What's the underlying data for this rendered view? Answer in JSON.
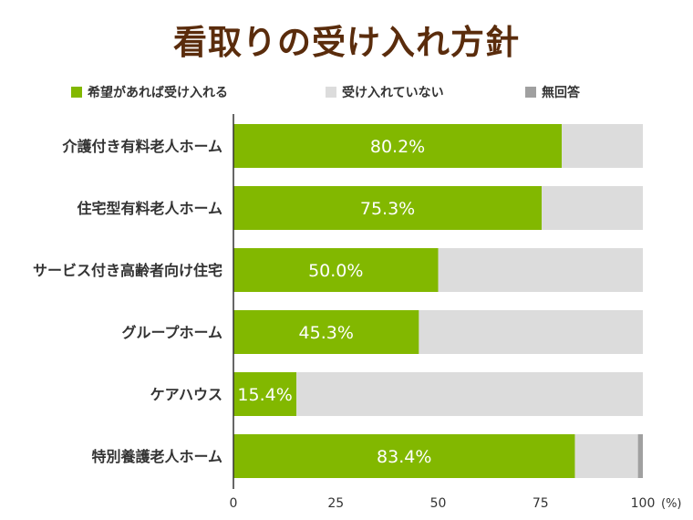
{
  "title": "看取りの受け入れ方針",
  "colors": {
    "accept": "#82b800",
    "not_accept": "#dcdcdc",
    "no_answer": "#a0a0a0",
    "title": "#5a2c0c"
  },
  "legend": [
    {
      "label": "希望があれば受け入れる",
      "color": "#82b800"
    },
    {
      "label": "受け入れていない",
      "color": "#dcdcdc"
    },
    {
      "label": "無回答",
      "color": "#a0a0a0"
    }
  ],
  "chart_data": {
    "type": "bar",
    "orientation": "horizontal",
    "stacked": true,
    "title": "看取りの受け入れ方針",
    "categories": [
      "介護付き有料老人ホーム",
      "住宅型有料老人ホーム",
      "サービス付き高齢者向け住宅",
      "グループホーム",
      "ケアハウス",
      "特別養護老人ホーム"
    ],
    "series": [
      {
        "name": "希望があれば受け入れる",
        "values": [
          80.2,
          75.3,
          50.0,
          45.3,
          15.4,
          83.4
        ]
      },
      {
        "name": "受け入れていない",
        "values": [
          19.8,
          24.7,
          50.0,
          54.7,
          84.6,
          15.4
        ]
      },
      {
        "name": "無回答",
        "values": [
          0,
          0,
          0,
          0,
          0,
          1.2
        ]
      }
    ],
    "data_labels": [
      "80.2%",
      "75.3%",
      "50.0%",
      "45.3%",
      "15.4%",
      "83.4%"
    ],
    "xlim": [
      0,
      100
    ],
    "xticks": [
      0,
      25,
      50,
      75,
      100
    ],
    "xlabel": "(%)",
    "grid": false,
    "legend_position": "top"
  }
}
